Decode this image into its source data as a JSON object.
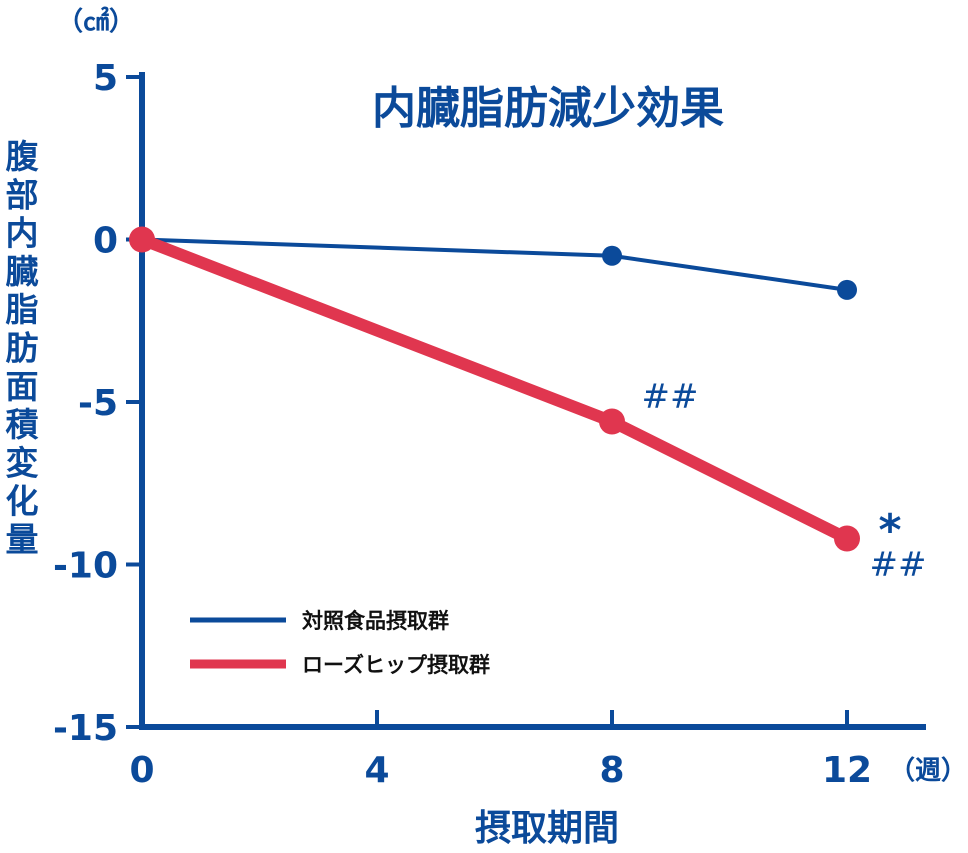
{
  "colors": {
    "axis": "#0b4a9a",
    "control": "#0b4a9a",
    "rosehip": "#e0364f"
  },
  "chart_data": {
    "type": "line",
    "title": "内臓脂肪減少効果",
    "ylabel": "腹部内臓脂肪面積変化量",
    "y_unit": "（㎠）",
    "xlabel": "摂取期間",
    "x_unit": "（週）",
    "x_ticks": [
      "0",
      "4",
      "8",
      "12"
    ],
    "y_ticks": [
      "5",
      "0",
      "-5",
      "-10",
      "-15"
    ],
    "xlim": [
      0,
      12.2
    ],
    "ylim": [
      -15,
      5
    ],
    "legend_position": "bottom-left",
    "series": [
      {
        "name": "対照食品摂取群",
        "color": "#0b4a9a",
        "x": [
          0,
          8,
          12
        ],
        "y": [
          0,
          -0.5,
          -1.55
        ]
      },
      {
        "name": "ローズヒップ摂取群",
        "color": "#e0364f",
        "x": [
          0,
          8,
          12
        ],
        "y": [
          0,
          -5.6,
          -9.2
        ]
      }
    ],
    "annotations": [
      {
        "text": "##",
        "x": 8,
        "series": 1
      },
      {
        "text": "*",
        "x": 12,
        "series": 1
      },
      {
        "text": "##",
        "x": 12,
        "series": 1
      }
    ]
  }
}
